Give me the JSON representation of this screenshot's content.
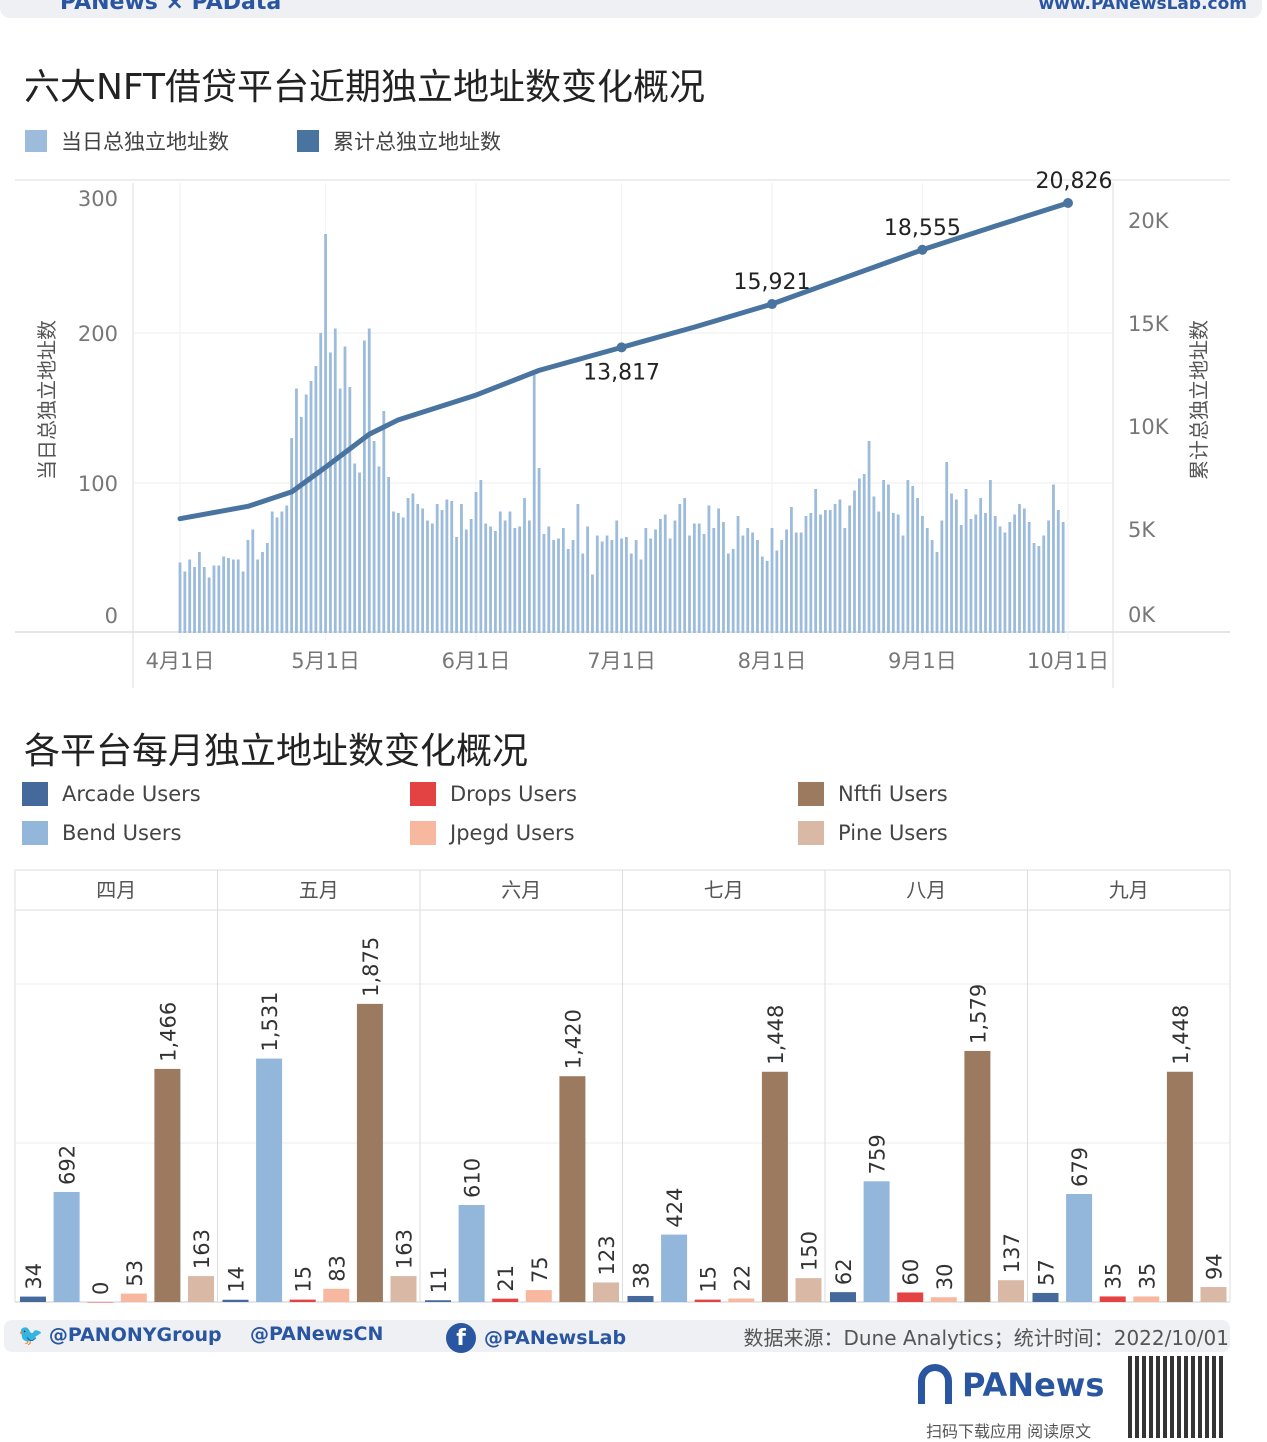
{
  "header": {
    "brand": "PANews × PAData",
    "site": "www.PANewsLab.com"
  },
  "colors": {
    "daily": "#9dbcdc",
    "cumulative": "#4a74a0",
    "Arcade": "#44699a",
    "Bend": "#93b6db",
    "Drops": "#e34343",
    "Jpegd": "#f8b8a0",
    "Nftfi": "#9c7a5f",
    "Pine": "#d9b8a6"
  },
  "chart_data": [
    {
      "type": "bar+line",
      "title": "六大NFT借贷平台近期独立地址数变化概况",
      "legend": [
        "当日总独立地址数",
        "累计总独立地址数"
      ],
      "ylabel_left": "当日总独立地址数",
      "ylabel_right": "累计总独立地址数",
      "ylim_left": [
        0,
        300
      ],
      "ylim_right": [
        0,
        21800
      ],
      "yticks_left": [
        "0",
        "100",
        "200",
        "300"
      ],
      "yticks_right": [
        "0K",
        "5K",
        "10K",
        "15K",
        "20K"
      ],
      "xticks": [
        "4月1日",
        "5月1日",
        "6月1日",
        "7月1日",
        "8月1日",
        "9月1日",
        "10月1日"
      ],
      "daily_start": "2022-04-01",
      "daily_values": [
        47,
        41,
        49,
        44,
        54,
        44,
        37,
        45,
        45,
        51,
        50,
        49,
        49,
        41,
        62,
        69,
        49,
        54,
        60,
        81,
        77,
        81,
        85,
        130,
        163,
        144,
        159,
        168,
        178,
        200,
        266,
        187,
        203,
        163,
        191,
        164,
        113,
        107,
        195,
        203,
        128,
        111,
        148,
        104,
        81,
        80,
        77,
        90,
        93,
        86,
        83,
        75,
        73,
        86,
        82,
        89,
        88,
        64,
        86,
        69,
        76,
        94,
        102,
        73,
        71,
        68,
        81,
        75,
        81,
        70,
        71,
        90,
        75,
        172,
        110,
        66,
        71,
        62,
        63,
        70,
        56,
        62,
        86,
        53,
        71,
        39,
        65,
        61,
        65,
        62,
        75,
        63,
        64,
        53,
        62,
        49,
        70,
        63,
        69,
        76,
        79,
        63,
        75,
        86,
        90,
        65,
        73,
        73,
        66,
        85,
        70,
        83,
        74,
        53,
        56,
        78,
        65,
        70,
        67,
        62,
        51,
        48,
        70,
        55,
        62,
        69,
        84,
        67,
        67,
        78,
        80,
        96,
        79,
        82,
        82,
        86,
        89,
        70,
        85,
        95,
        103,
        106,
        128,
        91,
        81,
        102,
        99,
        80,
        79,
        65,
        102,
        98,
        90,
        78,
        70,
        62,
        54,
        75,
        114,
        93,
        89,
        72,
        96,
        76,
        79,
        90,
        80,
        102,
        78,
        71,
        67,
        74,
        79,
        86,
        83,
        74,
        60,
        58,
        65,
        75,
        99,
        82,
        74
      ],
      "cumulative": [
        {
          "date": "2022-04-01",
          "value": 5500
        },
        {
          "date": "2022-04-15",
          "value": 6100
        },
        {
          "date": "2022-04-24",
          "value": 6800
        },
        {
          "date": "2022-05-01",
          "value": 8000
        },
        {
          "date": "2022-05-10",
          "value": 9600
        },
        {
          "date": "2022-05-16",
          "value": 10300
        },
        {
          "date": "2022-06-01",
          "value": 11500
        },
        {
          "date": "2022-06-14",
          "value": 12700
        },
        {
          "date": "2022-07-01",
          "value": 13817,
          "label": "13,817"
        },
        {
          "date": "2022-07-16",
          "value": 14800
        },
        {
          "date": "2022-08-01",
          "value": 15921,
          "label": "15,921"
        },
        {
          "date": "2022-08-16",
          "value": 17200
        },
        {
          "date": "2022-09-01",
          "value": 18555,
          "label": "18,555"
        },
        {
          "date": "2022-09-16",
          "value": 19700
        },
        {
          "date": "2022-10-01",
          "value": 20826,
          "label": "20,826"
        }
      ]
    },
    {
      "type": "bar",
      "title": "各平台每月独立地址数变化概况",
      "ylim": [
        0,
        2450
      ],
      "panels": [
        "四月",
        "五月",
        "六月",
        "七月",
        "八月",
        "九月"
      ],
      "series": [
        {
          "name": "Arcade Users",
          "key": "Arcade",
          "values": [
            34,
            14,
            11,
            38,
            62,
            57
          ]
        },
        {
          "name": "Bend Users",
          "key": "Bend",
          "values": [
            692,
            1531,
            610,
            424,
            759,
            679
          ]
        },
        {
          "name": "Drops Users",
          "key": "Drops",
          "values": [
            0,
            15,
            21,
            15,
            60,
            35
          ]
        },
        {
          "name": "Jpegd Users",
          "key": "Jpegd",
          "values": [
            53,
            83,
            75,
            22,
            30,
            35
          ]
        },
        {
          "name": "Nftfi Users",
          "key": "Nftfi",
          "values": [
            1466,
            1875,
            1420,
            1448,
            1579,
            1448
          ]
        },
        {
          "name": "Pine Users",
          "key": "Pine",
          "values": [
            163,
            163,
            123,
            150,
            137,
            94
          ]
        }
      ]
    }
  ],
  "footer": {
    "twitter": "@PANONYGroup",
    "weibo": "@PANewsCN",
    "facebook": "@PANewsLab",
    "source": "数据来源：Dune Analytics；统计时间：2022/10/01",
    "logo": "PANews",
    "qr_caption": "扫码下载应用 阅读原文"
  }
}
